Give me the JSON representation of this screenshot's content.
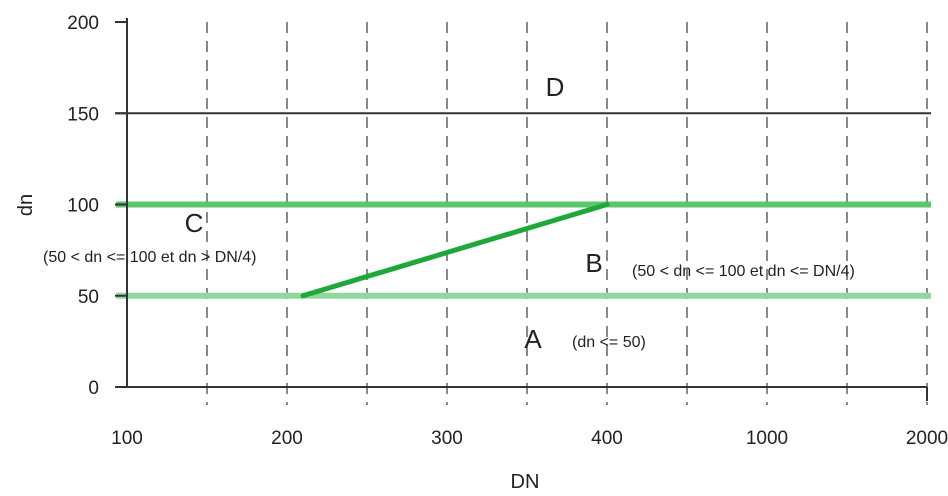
{
  "chart_data": {
    "type": "line",
    "title": "",
    "xlabel": "DN",
    "ylabel": "dn",
    "x_ticks": [
      "100",
      "200",
      "300",
      "400",
      "1000",
      "2000"
    ],
    "x_ticks_note": "categorical axis; minor dashed gridlines between each labelled tick",
    "y_ticks": [
      0,
      50,
      100,
      150,
      200
    ],
    "ylim": [
      0,
      200
    ],
    "grid": "vertical dashed gridlines at every half-step",
    "series": [
      {
        "color": "#1ea83a",
        "points": [
          {
            "x": 210,
            "y": 50
          },
          {
            "x": 400,
            "y": 100
          }
        ]
      }
    ],
    "reference_lines": [
      {
        "y": 50,
        "color": "#8fd89c"
      },
      {
        "y": 100,
        "color": "#5cc66e"
      },
      {
        "y": 150,
        "color": "#333333"
      }
    ],
    "regions": [
      {
        "label": "D",
        "note": ""
      },
      {
        "label": "C",
        "note": "(50 < dn <= 100 et dn > DN/4)"
      },
      {
        "label": "B",
        "note": "(50 < dn <= 100 et dn <= DN/4)"
      },
      {
        "label": "A",
        "note": "(dn <= 50)"
      }
    ]
  }
}
